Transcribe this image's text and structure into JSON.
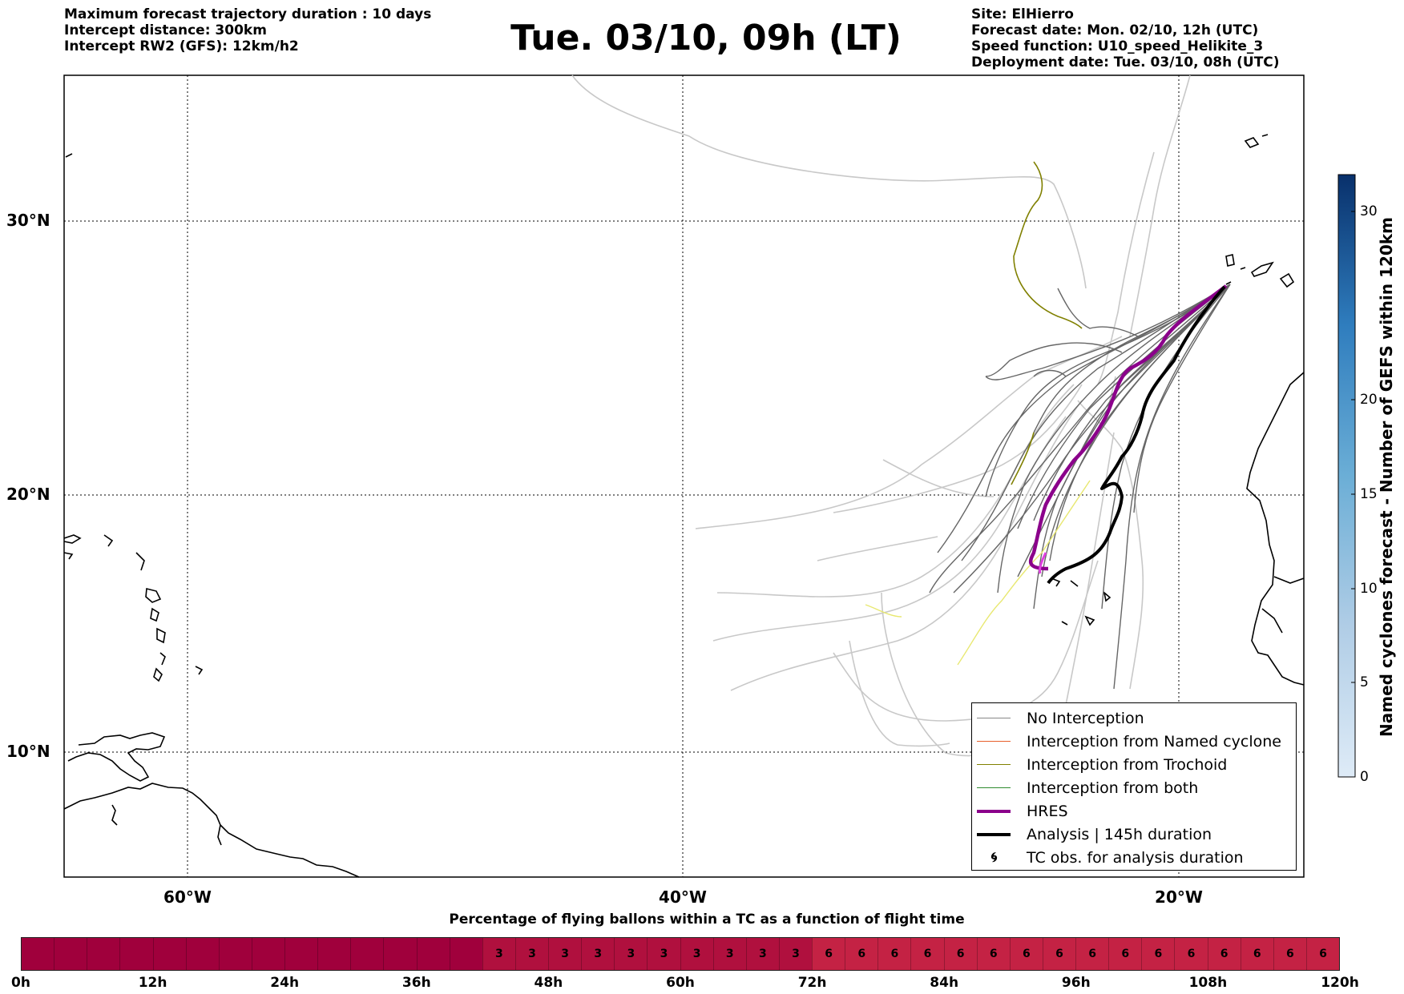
{
  "header": {
    "left_lines": [
      "Maximum forecast trajectory duration : 10 days",
      "Intercept distance: 300km",
      "Intercept RW2 (GFS):  12km/h2"
    ],
    "title": "Tue. 03/10, 09h (LT)",
    "right_lines": [
      "Site: ElHierro",
      "Forecast date: Mon. 02/10, 12h (UTC)",
      "Speed function: U10_speed_Helikite_3",
      "Deployment date: Tue. 03/10, 08h (UTC)"
    ]
  },
  "map": {
    "lat_labels": [
      "30°N",
      "20°N",
      "10°N"
    ],
    "lon_labels": [
      "60°W",
      "40°W",
      "20°W"
    ],
    "colors": {
      "no_interception": "#555555",
      "ensemble_light": "#c8c8c8",
      "named_cyclone": "#e8602c",
      "trochoid": "#808000",
      "both": "#2e8b2e",
      "hres": "#8b008b",
      "analysis": "#000000",
      "yellow_track": "#e8e870"
    }
  },
  "legend": {
    "items": [
      {
        "label": "No Interception",
        "icon": "line-gray"
      },
      {
        "label": "Interception from Named cyclone",
        "icon": "line-orange"
      },
      {
        "label": "Interception from Trochoid",
        "icon": "line-olive"
      },
      {
        "label": "Interception from both",
        "icon": "line-green"
      },
      {
        "label": "HRES",
        "icon": "line-purple-thick"
      },
      {
        "label": "Analysis | 145h duration",
        "icon": "line-black-thick"
      },
      {
        "label": "TC obs. for analysis duration",
        "icon": "cyclone-symbols"
      }
    ]
  },
  "colorbar": {
    "label": "Named cyclones forecast - Number of GEFS within 120km",
    "ticks": [
      "0",
      "5",
      "10",
      "15",
      "20",
      "30"
    ]
  },
  "flight_bar": {
    "caption": "Percentage of flying ballons within a TC as a function of flight time",
    "cells": [
      "",
      "",
      "",
      "",
      "",
      "",
      "",
      "",
      "",
      "",
      "",
      "",
      "",
      "",
      "3",
      "3",
      "3",
      "3",
      "3",
      "3",
      "3",
      "3",
      "3",
      "3",
      "6",
      "6",
      "6",
      "6",
      "6",
      "6",
      "6",
      "6",
      "6",
      "6",
      "6",
      "6",
      "6",
      "6",
      "6",
      "6"
    ],
    "ticks": [
      "0h",
      "12h",
      "24h",
      "36h",
      "48h",
      "60h",
      "72h",
      "84h",
      "96h",
      "108h",
      "120h"
    ],
    "colors": {
      "zero": "#a0003c",
      "three": "#b0103e",
      "six": "#c42244"
    }
  }
}
